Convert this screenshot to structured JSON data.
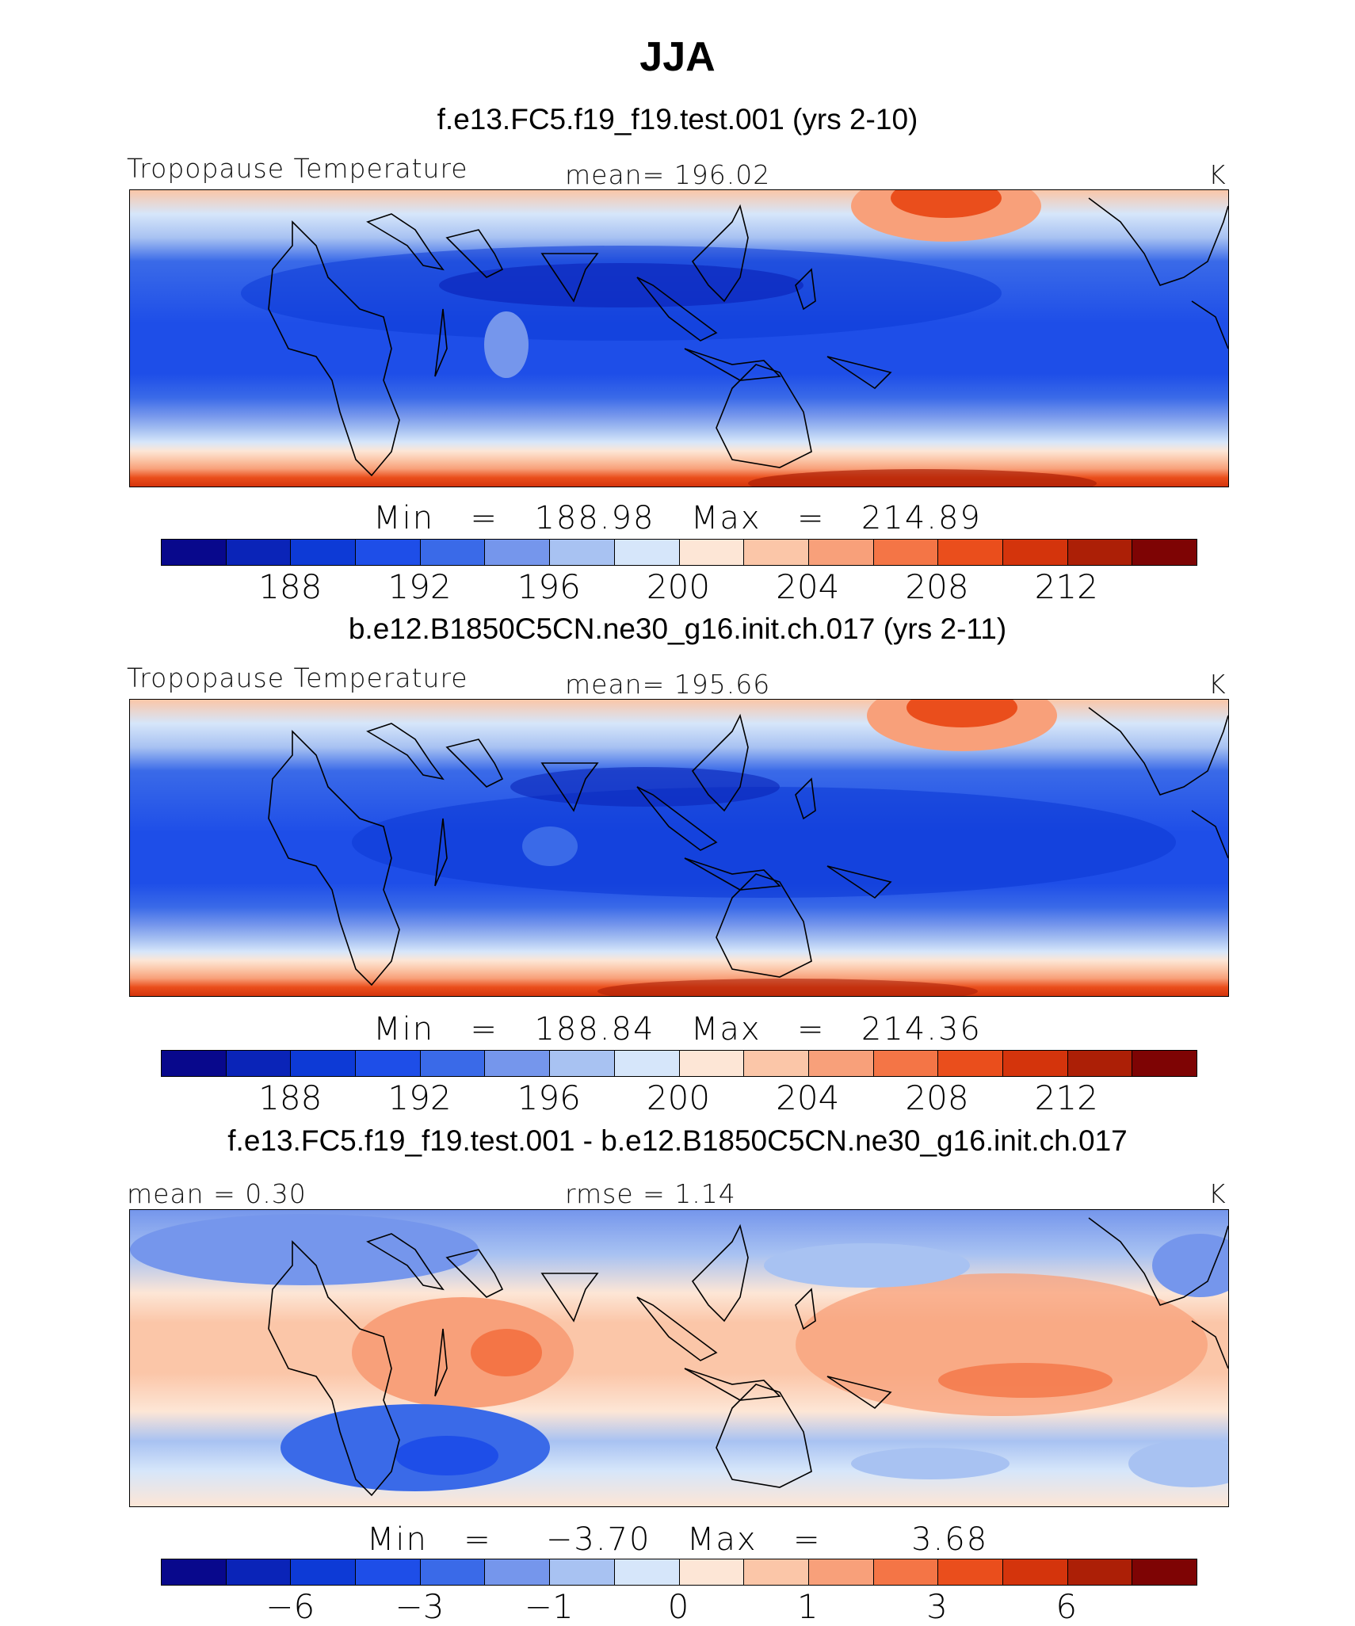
{
  "title": "JJA",
  "panels": [
    {
      "subtitle": "f.e13.FC5.f19_f19.test.001 (yrs 2-10)",
      "left_label": "Tropopause Temperature",
      "center_label": "mean=  196.02",
      "units": "K",
      "minmax": "Min  =  188.98  Max  =  214.89",
      "map": {
        "field": "tropopause_temperature",
        "mean": 196.02,
        "min": 188.98,
        "max": 214.89
      },
      "colorbar": {
        "colors": [
          "#08088c",
          "#0a24b8",
          "#0d3ad6",
          "#1e4ee8",
          "#3a6ae8",
          "#7596ec",
          "#a8c2f2",
          "#d6e6fa",
          "#fde6d6",
          "#fbc6a8",
          "#f8a07a",
          "#f47546",
          "#ea4e1c",
          "#d4340c",
          "#ac1f06",
          "#7e0404"
        ],
        "ticks": [
          "188",
          "192",
          "196",
          "200",
          "204",
          "208",
          "212"
        ]
      }
    },
    {
      "subtitle": "b.e12.B1850C5CN.ne30_g16.init.ch.017 (yrs 2-11)",
      "left_label": "Tropopause Temperature",
      "center_label": "mean=  195.66",
      "units": "K",
      "minmax": "Min  =  188.84  Max  =  214.36",
      "map": {
        "field": "tropopause_temperature",
        "mean": 195.66,
        "min": 188.84,
        "max": 214.36
      },
      "colorbar": {
        "colors": [
          "#08088c",
          "#0a24b8",
          "#0d3ad6",
          "#1e4ee8",
          "#3a6ae8",
          "#7596ec",
          "#a8c2f2",
          "#d6e6fa",
          "#fde6d6",
          "#fbc6a8",
          "#f8a07a",
          "#f47546",
          "#ea4e1c",
          "#d4340c",
          "#ac1f06",
          "#7e0404"
        ],
        "ticks": [
          "188",
          "192",
          "196",
          "200",
          "204",
          "208",
          "212"
        ]
      }
    },
    {
      "subtitle": "f.e13.FC5.f19_f19.test.001 - b.e12.B1850C5CN.ne30_g16.init.ch.017",
      "left_label": "mean =    0.30",
      "center_label": "rmse =    1.14",
      "units": "K",
      "minmax": "Min  =   −3.70  Max  =     3.68",
      "map": {
        "field": "difference",
        "mean": 0.3,
        "rmse": 1.14,
        "min": -3.7,
        "max": 3.68
      },
      "colorbar": {
        "colors": [
          "#08088c",
          "#0a24b8",
          "#0d3ad6",
          "#1e4ee8",
          "#3a6ae8",
          "#7596ec",
          "#a8c2f2",
          "#d6e6fa",
          "#fde6d6",
          "#fbc6a8",
          "#f8a07a",
          "#f47546",
          "#ea4e1c",
          "#d4340c",
          "#ac1f06",
          "#7e0404"
        ],
        "ticks": [
          "−6",
          "−3",
          "−1",
          "0",
          "1",
          "3",
          "6"
        ]
      }
    }
  ]
}
